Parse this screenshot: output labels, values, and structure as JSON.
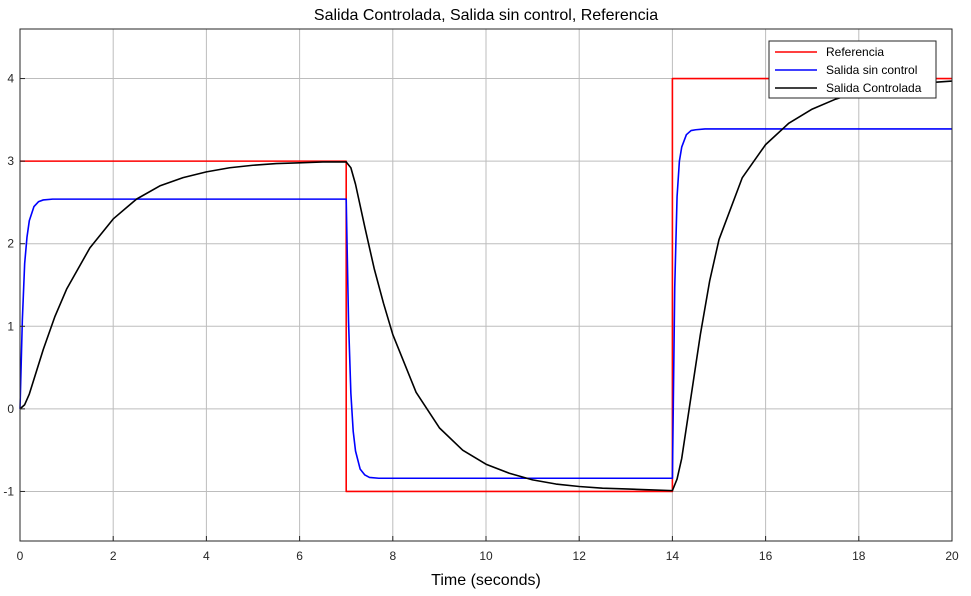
{
  "chart_data": {
    "type": "line",
    "title": "Salida Controlada, Salida sin control, Referencia",
    "xlabel": "Time (seconds)",
    "ylabel": "",
    "xlim": [
      0,
      20
    ],
    "ylim": [
      -1.6,
      4.6
    ],
    "xticks": [
      0,
      2,
      4,
      6,
      8,
      10,
      12,
      14,
      16,
      18,
      20
    ],
    "yticks": [
      -1,
      0,
      1,
      2,
      3,
      4
    ],
    "grid": true,
    "legend_position": "top-right",
    "series": [
      {
        "name": "Referencia",
        "color": "#ff0000",
        "x": [
          0,
          7,
          7,
          14,
          14,
          20
        ],
        "y": [
          3,
          3,
          -1,
          -1,
          4,
          4
        ]
      },
      {
        "name": "Salida sin control",
        "color": "#0000ff",
        "x": [
          0,
          0.05,
          0.1,
          0.15,
          0.2,
          0.3,
          0.4,
          0.5,
          0.7,
          1,
          3,
          7,
          7.05,
          7.1,
          7.15,
          7.2,
          7.3,
          7.4,
          7.5,
          7.7,
          8,
          10,
          14,
          14.05,
          14.1,
          14.15,
          14.2,
          14.3,
          14.4,
          14.5,
          14.7,
          15,
          17,
          20
        ],
        "y": [
          0,
          1.07,
          1.76,
          2.08,
          2.28,
          2.45,
          2.51,
          2.53,
          2.54,
          2.54,
          2.54,
          2.54,
          1.06,
          0.19,
          -0.27,
          -0.51,
          -0.73,
          -0.8,
          -0.83,
          -0.84,
          -0.84,
          -0.84,
          -0.84,
          1.47,
          2.57,
          3.0,
          3.17,
          3.32,
          3.37,
          3.38,
          3.39,
          3.39,
          3.39,
          3.39
        ]
      },
      {
        "name": "Salida Controlada",
        "color": "#000000",
        "x": [
          0,
          0.1,
          0.2,
          0.3,
          0.5,
          0.75,
          1,
          1.5,
          2,
          2.5,
          3,
          3.5,
          4,
          4.5,
          5,
          5.5,
          6,
          6.5,
          7,
          7.1,
          7.2,
          7.4,
          7.6,
          7.8,
          8,
          8.5,
          9,
          9.5,
          10,
          10.5,
          11,
          11.5,
          12,
          12.5,
          13,
          13.5,
          14,
          14.1,
          14.2,
          14.4,
          14.6,
          14.8,
          15,
          15.5,
          16,
          16.5,
          17,
          17.5,
          18,
          18.5,
          19,
          19.5,
          20
        ],
        "y": [
          0,
          0.05,
          0.18,
          0.36,
          0.72,
          1.12,
          1.45,
          1.95,
          2.3,
          2.54,
          2.7,
          2.8,
          2.87,
          2.92,
          2.95,
          2.97,
          2.98,
          2.99,
          2.99,
          2.92,
          2.72,
          2.2,
          1.7,
          1.28,
          0.9,
          0.2,
          -0.23,
          -0.5,
          -0.67,
          -0.78,
          -0.86,
          -0.91,
          -0.94,
          -0.96,
          -0.97,
          -0.98,
          -0.99,
          -0.85,
          -0.6,
          0.15,
          0.9,
          1.55,
          2.05,
          2.8,
          3.2,
          3.46,
          3.63,
          3.75,
          3.84,
          3.89,
          3.93,
          3.95,
          3.97
        ]
      }
    ]
  }
}
